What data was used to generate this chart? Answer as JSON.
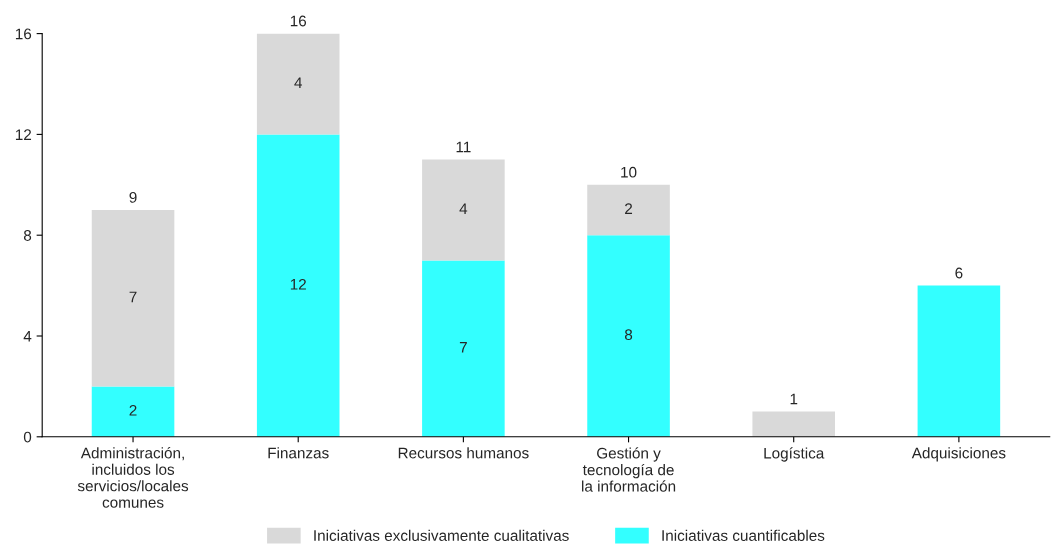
{
  "chart_data": {
    "type": "bar",
    "stacked": true,
    "categories": [
      "Administración,\nincluidos los\nservicios/locales\ncomunes",
      "Finanzas",
      "Recursos humanos",
      "Gestión y\ntecnología de\nla información",
      "Logística",
      "Adquisiciones"
    ],
    "series": [
      {
        "name": "Iniciativas cuantificables",
        "color": "#33ffff",
        "values": [
          2,
          12,
          7,
          8,
          0,
          6
        ],
        "value_labels": [
          "2",
          "12",
          "7",
          "8",
          null,
          null
        ]
      },
      {
        "name": "Iniciativas exclusivamente cualitativas",
        "color": "#d9d9d9",
        "values": [
          7,
          4,
          4,
          2,
          1,
          0
        ],
        "value_labels": [
          "7",
          "4",
          "4",
          "2",
          null,
          null
        ]
      }
    ],
    "totals": [
      "9",
      "16",
      "11",
      "10",
      "1",
      "6"
    ],
    "ylim": [
      0,
      16
    ],
    "yticks": [
      0,
      4,
      8,
      12,
      16
    ],
    "grid": false,
    "legend": "bottom"
  }
}
